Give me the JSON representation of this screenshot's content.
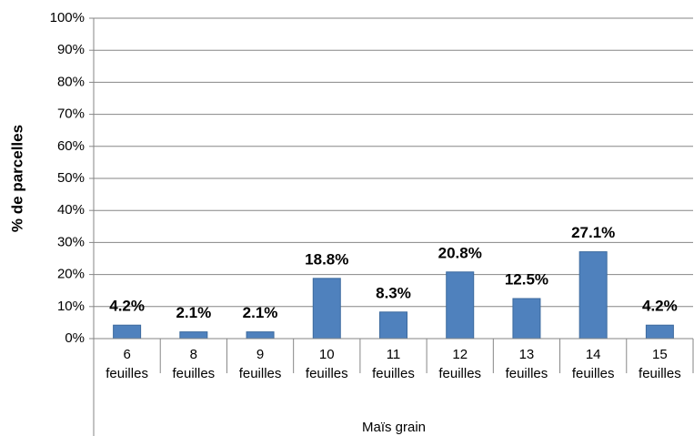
{
  "chart_data": {
    "type": "bar",
    "y_label": "% de parcelles",
    "x_group_label": "Maïs grain",
    "categories": [
      "6 feuilles",
      "8 feuilles",
      "9 feuilles",
      "10 feuilles",
      "11 feuilles",
      "12 feuilles",
      "13 feuilles",
      "14 feuilles",
      "15 feuilles"
    ],
    "values": [
      4.2,
      2.1,
      2.1,
      18.8,
      8.3,
      20.8,
      12.5,
      27.1,
      4.2
    ],
    "value_labels": [
      "4.2%",
      "2.1%",
      "2.1%",
      "18.8%",
      "8.3%",
      "20.8%",
      "12.5%",
      "27.1%",
      "4.2%"
    ],
    "color": "#4f81bd",
    "ylim": [
      0,
      100
    ],
    "yticks": [
      {
        "value": 0,
        "label": "0%"
      },
      {
        "value": 10,
        "label": "10%"
      },
      {
        "value": 20,
        "label": "20%"
      },
      {
        "value": 30,
        "label": "30%"
      },
      {
        "value": 40,
        "label": "40%"
      },
      {
        "value": 50,
        "label": "50%"
      },
      {
        "value": 60,
        "label": "60%"
      },
      {
        "value": 70,
        "label": "70%"
      },
      {
        "value": 80,
        "label": "80%"
      },
      {
        "value": 90,
        "label": "90%"
      },
      {
        "value": 100,
        "label": "100%"
      }
    ],
    "grid": true
  }
}
